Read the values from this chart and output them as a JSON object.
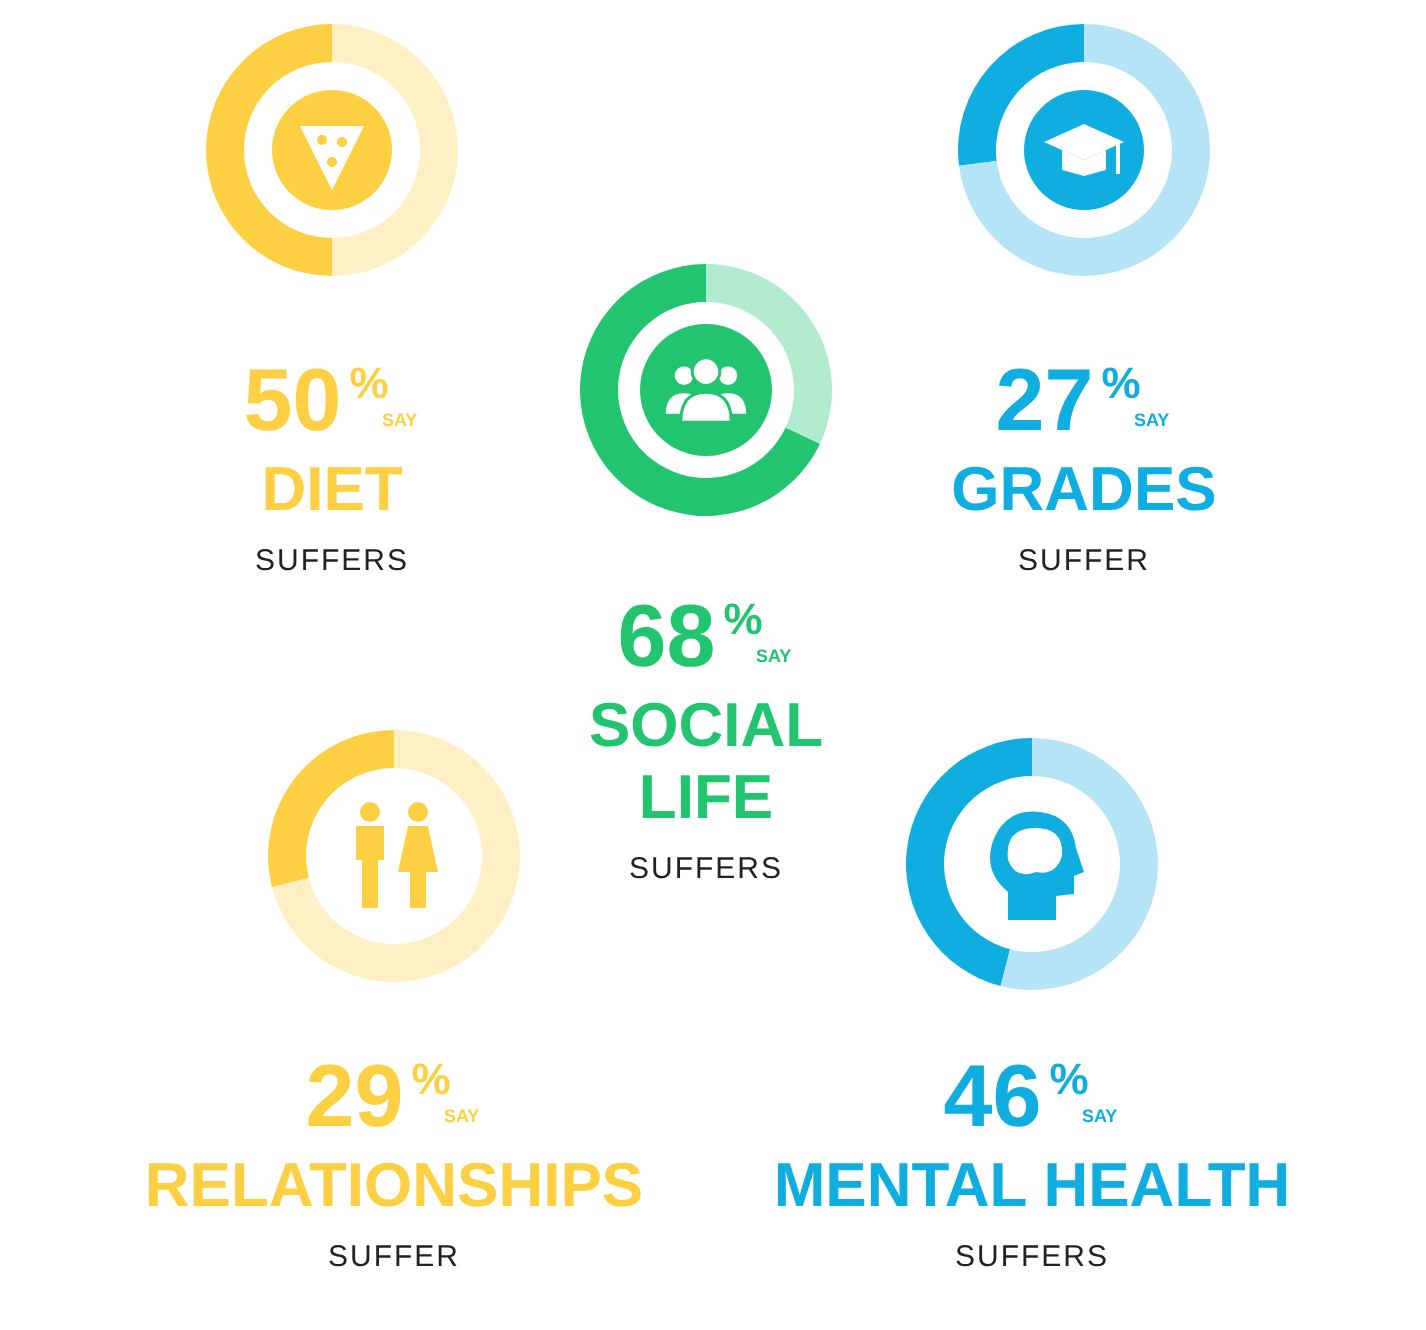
{
  "chart_data": [
    {
      "type": "donut",
      "title": "DIET",
      "subtitle": "SUFFERS",
      "categories": [
        null,
        null
      ],
      "values": [
        50,
        50
      ],
      "colors": [
        "#fdcf43",
        "#fef0c4"
      ],
      "annotations": [
        "50%",
        "SAY"
      ]
    },
    {
      "type": "donut",
      "title": "GRADES",
      "subtitle": "SUFFER",
      "categories": [
        null,
        null
      ],
      "values": [
        27,
        73
      ],
      "colors": [
        "#10ade0",
        "#b4e4f5"
      ],
      "annotations": [
        "27%",
        "SAY"
      ]
    },
    {
      "type": "donut",
      "title": "SOCIAL LIFE",
      "subtitle": "SUFFERS",
      "categories": [
        null,
        null
      ],
      "values": [
        68,
        32
      ],
      "colors": [
        "#22c46f",
        "#b3ebd1"
      ],
      "annotations": [
        "68%",
        "SAY"
      ]
    },
    {
      "type": "donut",
      "title": "RELATIONSHIPS",
      "subtitle": "SUFFER",
      "categories": [
        null,
        null
      ],
      "values": [
        29,
        71
      ],
      "colors": [
        "#fdcf43",
        "#fef0c4"
      ],
      "annotations": [
        "29%",
        "SAY"
      ]
    },
    {
      "type": "donut",
      "title": "MENTAL HEALTH",
      "subtitle": "SUFFERS",
      "categories": [
        null,
        null
      ],
      "values": [
        46,
        54
      ],
      "colors": [
        "#10ade0",
        "#b4e4f5"
      ],
      "annotations": [
        "46%",
        "SAY"
      ]
    }
  ]
}
